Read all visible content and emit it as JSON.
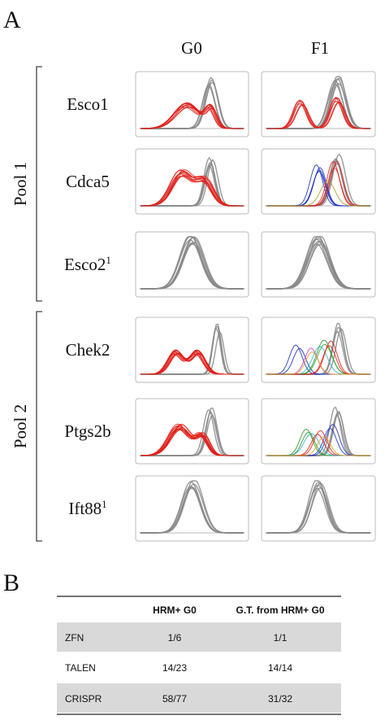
{
  "panel_a": {
    "label": "A",
    "columns": [
      "G0",
      "F1"
    ],
    "pools": [
      {
        "label": "Pool 1",
        "genes": [
          {
            "name": "Esco1"
          },
          {
            "name": "Cdca5"
          },
          {
            "name": "Esco2",
            "superscript": "1"
          }
        ]
      },
      {
        "label": "Pool 2",
        "genes": [
          {
            "name": "Chek2"
          },
          {
            "name": "Ptgs2b"
          },
          {
            "name": "Ift88",
            "superscript": "1"
          }
        ]
      }
    ]
  },
  "panel_b": {
    "label": "B",
    "header": [
      "HRM+ G0",
      "G.T. from HRM+ G0"
    ],
    "rows": [
      [
        "ZFN",
        "1/6",
        "1/1"
      ],
      [
        "TALEN",
        "14/23",
        "14/14"
      ],
      [
        "CRISPR",
        "58/77",
        "31/32"
      ]
    ]
  }
}
